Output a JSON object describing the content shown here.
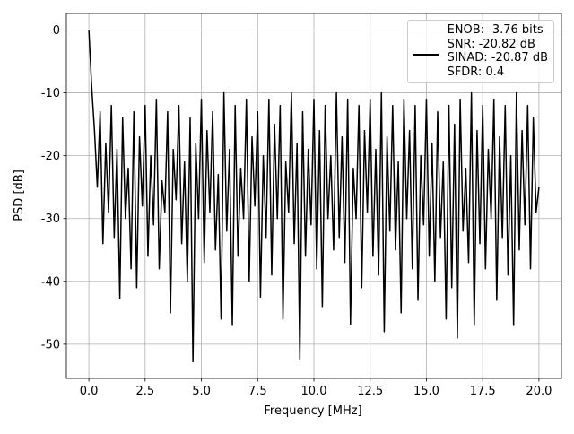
{
  "chart_data": {
    "type": "line",
    "xlabel": "Frequency [MHz]",
    "ylabel": "PSD [dB]",
    "x": [
      0,
      0.125,
      0.25,
      0.375,
      0.5,
      0.625,
      0.75,
      0.875,
      1,
      1.125,
      1.25,
      1.375,
      1.5,
      1.625,
      1.75,
      1.875,
      2,
      2.125,
      2.25,
      2.375,
      2.5,
      2.625,
      2.75,
      2.875,
      3,
      3.125,
      3.25,
      3.375,
      3.5,
      3.625,
      3.75,
      3.875,
      4,
      4.125,
      4.25,
      4.375,
      4.5,
      4.625,
      4.75,
      4.875,
      5,
      5.125,
      5.25,
      5.375,
      5.5,
      5.625,
      5.75,
      5.875,
      6,
      6.125,
      6.25,
      6.375,
      6.5,
      6.625,
      6.75,
      6.875,
      7,
      7.125,
      7.25,
      7.375,
      7.5,
      7.625,
      7.75,
      7.875,
      8,
      8.125,
      8.25,
      8.375,
      8.5,
      8.625,
      8.75,
      8.875,
      9,
      9.125,
      9.25,
      9.375,
      9.5,
      9.625,
      9.75,
      9.875,
      10,
      10.125,
      10.25,
      10.375,
      10.5,
      10.625,
      10.75,
      10.875,
      11,
      11.125,
      11.25,
      11.375,
      11.5,
      11.625,
      11.75,
      11.875,
      12,
      12.125,
      12.25,
      12.375,
      12.5,
      12.625,
      12.75,
      12.875,
      13,
      13.125,
      13.25,
      13.375,
      13.5,
      13.625,
      13.75,
      13.875,
      14,
      14.125,
      14.25,
      14.375,
      14.5,
      14.625,
      14.75,
      14.875,
      15,
      15.125,
      15.25,
      15.375,
      15.5,
      15.625,
      15.75,
      15.875,
      16,
      16.125,
      16.25,
      16.375,
      16.5,
      16.625,
      16.75,
      16.875,
      17,
      17.125,
      17.25,
      17.375,
      17.5,
      17.625,
      17.75,
      17.875,
      18,
      18.125,
      18.25,
      18.375,
      18.5,
      18.625,
      18.75,
      18.875,
      19,
      19.125,
      19.25,
      19.375,
      19.5,
      19.625,
      19.75,
      19.875,
      20
    ],
    "series": [
      {
        "name": "ENOB: -3.76 bits\nSNR: -20.82 dB\nSINAD: -20.87 dB\nSFDR: 0.4",
        "color": "#000000",
        "values": [
          0,
          -9,
          -16,
          -25,
          -13,
          -34,
          -18,
          -29,
          -12,
          -33,
          -19,
          -42.7,
          -14,
          -30,
          -22,
          -38,
          -13,
          -41,
          -17,
          -28,
          -12,
          -36,
          -20,
          -31,
          -11,
          -38,
          -24,
          -29,
          -13,
          -45,
          -19,
          -27,
          -12,
          -34,
          -21,
          -40,
          -14,
          -52.8,
          -18,
          -30,
          -11,
          -37,
          -16,
          -29,
          -13,
          -35,
          -23,
          -46,
          -10,
          -32,
          -19,
          -47,
          -12,
          -36,
          -22,
          -30,
          -11,
          -40,
          -17,
          -28,
          -13,
          -42.5,
          -20,
          -33,
          -11,
          -39,
          -15,
          -30,
          -12,
          -46,
          -21,
          -29,
          -10,
          -34,
          -18,
          -52.4,
          -13,
          -36,
          -19,
          -31,
          -11,
          -38,
          -16,
          -44,
          -12,
          -30,
          -20,
          -35,
          -10,
          -33,
          -17,
          -37,
          -11,
          -46.8,
          -22,
          -30,
          -12,
          -41,
          -16,
          -29,
          -11,
          -36,
          -19,
          -39,
          -10,
          -48,
          -17,
          -32,
          -12,
          -35,
          -21,
          -45,
          -11,
          -30,
          -16,
          -38,
          -12,
          -43,
          -20,
          -31,
          -11,
          -36,
          -18,
          -40,
          -13,
          -33,
          -21,
          -46,
          -12,
          -41,
          -15,
          -49,
          -11,
          -32,
          -22,
          -37,
          -10,
          -47,
          -16,
          -34,
          -12,
          -38,
          -19,
          -30,
          -11,
          -43,
          -17,
          -33,
          -12,
          -39,
          -20,
          -47,
          -10,
          -35,
          -16,
          -31,
          -12,
          -38,
          -14,
          -29,
          -25
        ]
      }
    ],
    "xlim": [
      -1,
      21
    ],
    "ylim": [
      -55.44,
      2.64
    ],
    "xticks": [
      {
        "value": 0,
        "label": "0.0"
      },
      2.5,
      {
        "value": 5,
        "label": "5.0"
      },
      7.5,
      {
        "value": 10,
        "label": "10.0"
      },
      12.5,
      {
        "value": 15,
        "label": "15.0"
      },
      17.5,
      {
        "value": 20,
        "label": "20.0"
      }
    ],
    "yticks": [
      0,
      -10,
      -20,
      -30,
      -40,
      -50
    ],
    "grid": true,
    "legend": "upper right"
  }
}
